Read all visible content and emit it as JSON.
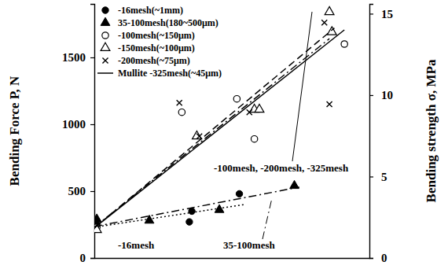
{
  "chart_data": {
    "type": "scatter",
    "y_label": "Bending Force P, N",
    "y2_label": "Bending strength σ, MPa",
    "xlim": [
      0,
      11
    ],
    "ylim": [
      0,
      1900
    ],
    "yticks": [
      0,
      500,
      1000,
      1500
    ],
    "y2lim": [
      0,
      15.6
    ],
    "y2ticks": [
      0,
      5,
      10,
      15
    ],
    "tick_labels": "y",
    "grid": false,
    "legend": "top-left",
    "annotations": [
      {
        "text": "-100mesh, -200mesh, -325mesh"
      },
      {
        "text": "-16mesh"
      },
      {
        "text": "35-100mesh"
      }
    ],
    "series": [
      {
        "name": "-16mesh(~1mm)",
        "type": "scatter",
        "marker": "circle",
        "color": "#000000",
        "x": [
          0.1,
          3.8,
          3.9,
          5.8
        ],
        "values": [
          250,
          270,
          350,
          480
        ]
      },
      {
        "name": "35-100mesh(180~500μm)",
        "type": "scatter",
        "marker": "triangle",
        "color": "#000000",
        "x": [
          0.1,
          2.2,
          5.0,
          8.0
        ],
        "values": [
          290,
          280,
          360,
          540
        ]
      },
      {
        "name": "-100mesh(~150μm)",
        "type": "scatter",
        "marker": "circle-open",
        "color": "#000000",
        "x": [
          0.1,
          3.5,
          5.7,
          6.4,
          10.0
        ],
        "values": [
          230,
          1090,
          1190,
          890,
          1600
        ]
      },
      {
        "name": "-150mesh(~100μm)",
        "type": "scatter",
        "marker": "triangle-open",
        "color": "#000000",
        "x": [
          0.1,
          4.1,
          6.4,
          6.6,
          9.4,
          9.5
        ],
        "values": [
          210,
          910,
          1110,
          1110,
          1840,
          1690
        ]
      },
      {
        "name": "-200mesh(~75μm)",
        "type": "scatter",
        "marker": "x",
        "color": "#000000",
        "x": [
          0.1,
          3.4,
          4.2,
          6.2,
          9.2,
          9.4
        ],
        "values": [
          270,
          1160,
          910,
          1090,
          1760,
          1150
        ]
      },
      {
        "name": "Mullite -325mesh(~45μm)",
        "type": "line",
        "line_style": "solid",
        "color": "#000000",
        "x": [
          0,
          10.0
        ],
        "values": [
          225,
          1706
        ]
      },
      {
        "type": "line",
        "line_style": "dashed",
        "color": "#000000",
        "x": [
          0,
          9.6
        ],
        "values": [
          225,
          1720
        ]
      },
      {
        "type": "line",
        "line_style": "dashdot",
        "color": "#000000",
        "x": [
          0,
          9.4
        ],
        "values": [
          230,
          1640
        ]
      },
      {
        "type": "line",
        "line_style": "dashdot",
        "color": "#000000",
        "x": [
          0,
          8.2
        ],
        "values": [
          235,
          530
        ]
      },
      {
        "type": "line",
        "line_style": "dotted",
        "color": "#000000",
        "x": [
          0,
          6.0
        ],
        "values": [
          230,
          400
        ]
      }
    ]
  }
}
